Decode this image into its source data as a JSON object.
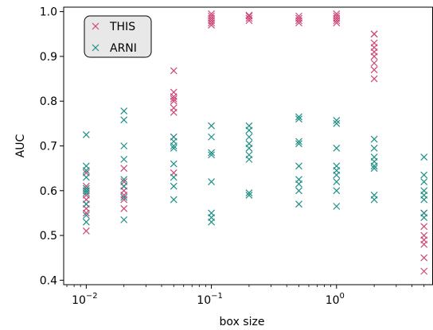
{
  "chart_data": {
    "type": "scatter",
    "xscale": "log",
    "xlabel": "box size",
    "ylabel": "AUC",
    "xlim": [
      0.0066,
      5.9
    ],
    "ylim": [
      0.39,
      1.01
    ],
    "yticks": [
      0.4,
      0.5,
      0.6,
      0.7,
      0.8,
      0.9,
      1.0
    ],
    "ytick_labels": [
      "0.4",
      "0.5",
      "0.6",
      "0.7",
      "0.8",
      "0.9",
      "1.0"
    ],
    "xticks": [
      {
        "value": 0.01,
        "base": "10",
        "exp": "−2"
      },
      {
        "value": 0.1,
        "base": "10",
        "exp": "−1"
      },
      {
        "value": 1,
        "base": "10",
        "exp": "0"
      }
    ],
    "legend_position": "top-left",
    "marker": "x",
    "series": [
      {
        "name": "THIS",
        "color": "#cc4778",
        "points": [
          [
            0.01,
            0.51
          ],
          [
            0.01,
            0.55
          ],
          [
            0.01,
            0.56
          ],
          [
            0.01,
            0.57
          ],
          [
            0.01,
            0.58
          ],
          [
            0.01,
            0.59
          ],
          [
            0.01,
            0.6
          ],
          [
            0.01,
            0.61
          ],
          [
            0.01,
            0.64
          ],
          [
            0.02,
            0.56
          ],
          [
            0.02,
            0.58
          ],
          [
            0.02,
            0.59
          ],
          [
            0.02,
            0.6
          ],
          [
            0.02,
            0.61
          ],
          [
            0.02,
            0.62
          ],
          [
            0.02,
            0.65
          ],
          [
            0.05,
            0.64
          ],
          [
            0.05,
            0.72
          ],
          [
            0.05,
            0.775
          ],
          [
            0.05,
            0.785
          ],
          [
            0.05,
            0.8
          ],
          [
            0.05,
            0.805
          ],
          [
            0.05,
            0.81
          ],
          [
            0.05,
            0.82
          ],
          [
            0.05,
            0.868
          ],
          [
            0.1,
            0.97
          ],
          [
            0.1,
            0.975
          ],
          [
            0.1,
            0.98
          ],
          [
            0.1,
            0.985
          ],
          [
            0.1,
            0.99
          ],
          [
            0.1,
            0.995
          ],
          [
            0.2,
            0.98
          ],
          [
            0.2,
            0.985
          ],
          [
            0.2,
            0.99
          ],
          [
            0.2,
            0.992
          ],
          [
            0.5,
            0.975
          ],
          [
            0.5,
            0.98
          ],
          [
            0.5,
            0.985
          ],
          [
            0.5,
            0.99
          ],
          [
            1.0,
            0.975
          ],
          [
            1.0,
            0.98
          ],
          [
            1.0,
            0.985
          ],
          [
            1.0,
            0.99
          ],
          [
            1.0,
            0.995
          ],
          [
            2.0,
            0.85
          ],
          [
            2.0,
            0.87
          ],
          [
            2.0,
            0.885
          ],
          [
            2.0,
            0.9
          ],
          [
            2.0,
            0.91
          ],
          [
            2.0,
            0.92
          ],
          [
            2.0,
            0.93
          ],
          [
            2.0,
            0.95
          ],
          [
            2.0,
            0.95
          ],
          [
            5.0,
            0.42
          ],
          [
            5.0,
            0.45
          ],
          [
            5.0,
            0.48
          ],
          [
            5.0,
            0.49
          ],
          [
            5.0,
            0.5
          ],
          [
            5.0,
            0.52
          ],
          [
            5.0,
            0.55
          ]
        ]
      },
      {
        "name": "ARNI",
        "color": "#1f8f86",
        "points": [
          [
            0.01,
            0.53
          ],
          [
            0.01,
            0.545
          ],
          [
            0.01,
            0.57
          ],
          [
            0.01,
            0.595
          ],
          [
            0.01,
            0.6
          ],
          [
            0.01,
            0.605
          ],
          [
            0.01,
            0.63
          ],
          [
            0.01,
            0.645
          ],
          [
            0.01,
            0.655
          ],
          [
            0.01,
            0.725
          ],
          [
            0.02,
            0.535
          ],
          [
            0.02,
            0.585
          ],
          [
            0.02,
            0.61
          ],
          [
            0.02,
            0.625
          ],
          [
            0.02,
            0.67
          ],
          [
            0.02,
            0.7
          ],
          [
            0.02,
            0.758
          ],
          [
            0.02,
            0.778
          ],
          [
            0.05,
            0.58
          ],
          [
            0.05,
            0.61
          ],
          [
            0.05,
            0.63
          ],
          [
            0.05,
            0.66
          ],
          [
            0.05,
            0.695
          ],
          [
            0.05,
            0.7
          ],
          [
            0.05,
            0.71
          ],
          [
            0.05,
            0.72
          ],
          [
            0.1,
            0.53
          ],
          [
            0.1,
            0.54
          ],
          [
            0.1,
            0.55
          ],
          [
            0.1,
            0.62
          ],
          [
            0.1,
            0.68
          ],
          [
            0.1,
            0.685
          ],
          [
            0.1,
            0.72
          ],
          [
            0.1,
            0.745
          ],
          [
            0.2,
            0.59
          ],
          [
            0.2,
            0.595
          ],
          [
            0.2,
            0.67
          ],
          [
            0.2,
            0.68
          ],
          [
            0.2,
            0.695
          ],
          [
            0.2,
            0.705
          ],
          [
            0.2,
            0.72
          ],
          [
            0.2,
            0.735
          ],
          [
            0.2,
            0.745
          ],
          [
            0.5,
            0.57
          ],
          [
            0.5,
            0.6
          ],
          [
            0.5,
            0.615
          ],
          [
            0.5,
            0.625
          ],
          [
            0.5,
            0.655
          ],
          [
            0.5,
            0.705
          ],
          [
            0.5,
            0.71
          ],
          [
            0.5,
            0.76
          ],
          [
            0.5,
            0.765
          ],
          [
            1.0,
            0.565
          ],
          [
            1.0,
            0.6
          ],
          [
            1.0,
            0.62
          ],
          [
            1.0,
            0.635
          ],
          [
            1.0,
            0.645
          ],
          [
            1.0,
            0.655
          ],
          [
            1.0,
            0.695
          ],
          [
            1.0,
            0.75
          ],
          [
            1.0,
            0.757
          ],
          [
            2.0,
            0.58
          ],
          [
            2.0,
            0.59
          ],
          [
            2.0,
            0.65
          ],
          [
            2.0,
            0.655
          ],
          [
            2.0,
            0.665
          ],
          [
            2.0,
            0.675
          ],
          [
            2.0,
            0.695
          ],
          [
            2.0,
            0.715
          ],
          [
            5.0,
            0.54
          ],
          [
            5.0,
            0.55
          ],
          [
            5.0,
            0.58
          ],
          [
            5.0,
            0.59
          ],
          [
            5.0,
            0.6
          ],
          [
            5.0,
            0.62
          ],
          [
            5.0,
            0.635
          ],
          [
            5.0,
            0.675
          ]
        ]
      }
    ]
  }
}
